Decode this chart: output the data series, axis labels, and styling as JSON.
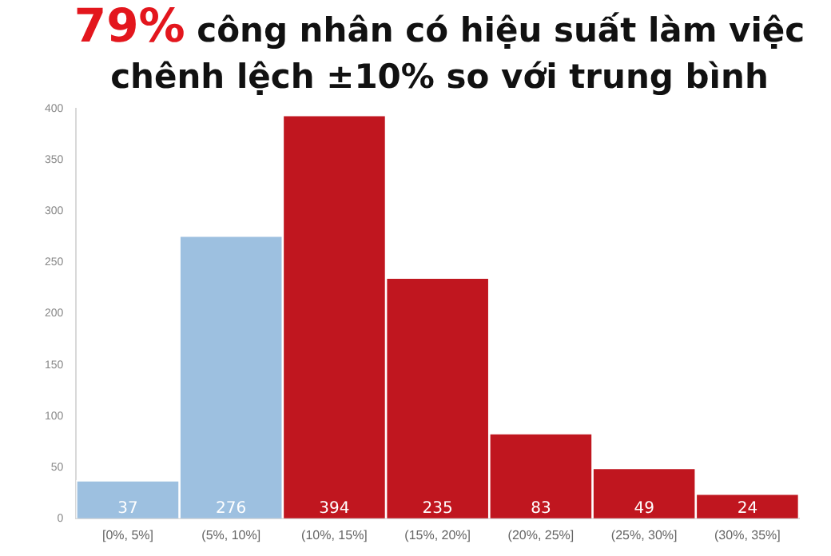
{
  "chart_data": {
    "type": "bar",
    "title": "79% công nhân có hiệu suất làm việc chênh lệch ±10% so với trung bình",
    "categories": [
      "[0%, 5%]",
      "(5%, 10%]",
      "(10%, 15%]",
      "(15%, 20%]",
      "(20%, 25%]",
      "(25%, 30%]",
      "(30%, 35%]"
    ],
    "values": [
      37,
      276,
      394,
      235,
      83,
      49,
      24
    ],
    "colors": [
      "#9dc0e0",
      "#9dc0e0",
      "#c0161f",
      "#c0161f",
      "#c0161f",
      "#c0161f",
      "#c0161f"
    ],
    "ylim": [
      0,
      400
    ],
    "yticks": [
      0,
      50,
      100,
      150,
      200,
      250,
      300,
      350,
      400
    ],
    "grid": false,
    "legend": false,
    "data_labels": true
  }
}
